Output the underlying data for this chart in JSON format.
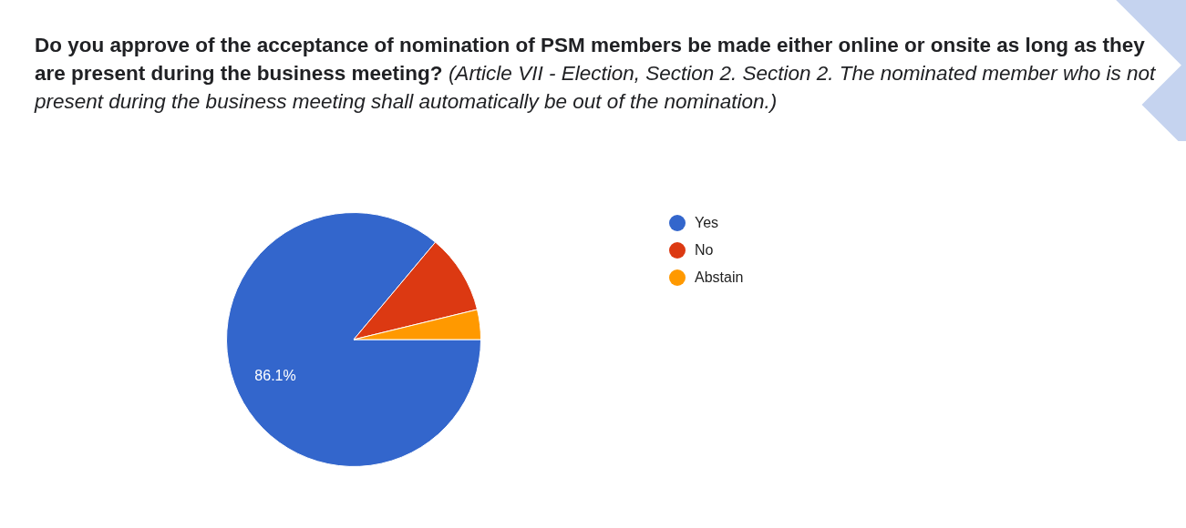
{
  "chart_data": {
    "type": "pie",
    "title": "Do you approve of the acceptance of nomination of PSM members be made either online or onsite as long as they are present during the business meeting?",
    "subtitle": "(Article VII - Election, Section 2. Section 2. The nominated member who is not present during the business meeting shall automatically be out of the nomination.)",
    "categories": [
      "Yes",
      "No",
      "Abstain"
    ],
    "values": [
      86.1,
      10.1,
      3.8
    ],
    "colors": [
      "#3366cc",
      "#dc3912",
      "#ff9900"
    ],
    "value_labels": [
      "86.1%",
      null,
      null
    ],
    "legend": "right"
  }
}
